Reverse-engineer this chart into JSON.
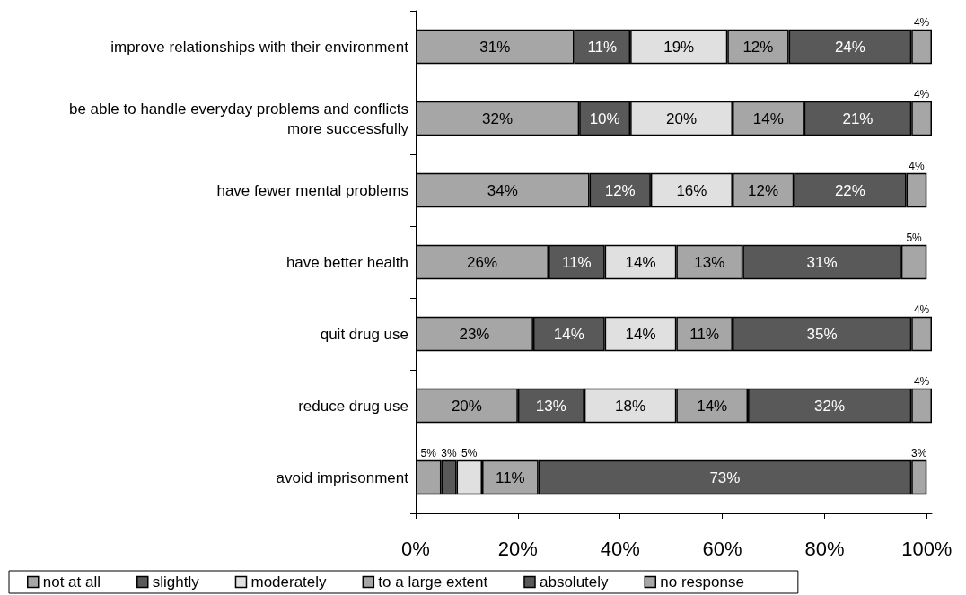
{
  "chart_data": {
    "type": "bar",
    "orientation": "horizontal",
    "stacked": true,
    "categories": [
      "improve relationships with their environment",
      "be able to handle everyday problems and conflicts\nmore successfully",
      "have fewer mental problems",
      "have better health",
      "quit drug use",
      "reduce drug use",
      "avoid imprisonment"
    ],
    "series": [
      {
        "name": "not at all",
        "color": "#a6a6a6",
        "values": [
          31,
          32,
          34,
          26,
          23,
          20,
          5
        ],
        "value_labels": [
          "31%",
          "32%",
          "34%",
          "26%",
          "23%",
          "20%",
          "5%"
        ]
      },
      {
        "name": "slightly",
        "color": "#595959",
        "values": [
          11,
          10,
          12,
          11,
          14,
          13,
          3
        ],
        "value_labels": [
          "11%",
          "10%",
          "12%",
          "11%",
          "14%",
          "13%",
          "3%"
        ]
      },
      {
        "name": "moderately",
        "color": "#e0e0e0",
        "values": [
          19,
          20,
          16,
          14,
          14,
          18,
          5
        ],
        "value_labels": [
          "19%",
          "20%",
          "16%",
          "14%",
          "14%",
          "18%",
          "5%"
        ]
      },
      {
        "name": "to a large extent",
        "color": "#a6a6a6",
        "values": [
          12,
          14,
          12,
          13,
          11,
          14,
          11
        ],
        "value_labels": [
          "12%",
          "14%",
          "12%",
          "13%",
          "11%",
          "14%",
          "11%"
        ]
      },
      {
        "name": "absolutely",
        "color": "#595959",
        "values": [
          24,
          21,
          22,
          31,
          35,
          32,
          73
        ],
        "value_labels": [
          "24%",
          "21%",
          "22%",
          "31%",
          "35%",
          "32%",
          "73%"
        ]
      },
      {
        "name": "no response",
        "color": "#a6a6a6",
        "values": [
          4,
          4,
          4,
          5,
          4,
          4,
          3
        ],
        "value_labels": [
          "4%",
          "4%",
          "4%",
          "5%",
          "4%",
          "4%",
          "3%"
        ]
      }
    ],
    "xlim": [
      0,
      101
    ],
    "xticks": [
      {
        "value": 0,
        "label": "0%"
      },
      {
        "value": 20,
        "label": "20%"
      },
      {
        "value": 40,
        "label": "40%"
      },
      {
        "value": 60,
        "label": "60%"
      },
      {
        "value": 80,
        "label": "80%"
      },
      {
        "value": 100,
        "label": "100%"
      }
    ],
    "grid": false,
    "legend": "bottom"
  }
}
